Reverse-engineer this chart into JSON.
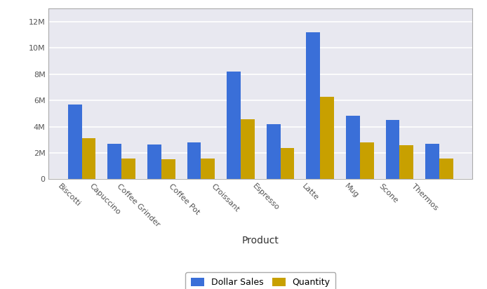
{
  "categories": [
    "Biscotti",
    "Capuccino",
    "Coffee Grinder",
    "Coffee Pot",
    "Croissant",
    "Espresso",
    "Latte",
    "Mug",
    "Scone",
    "Thermos"
  ],
  "dollar_sales": [
    5700000,
    2700000,
    2650000,
    2800000,
    8200000,
    4200000,
    11200000,
    4850000,
    4500000,
    2700000
  ],
  "quantity": [
    3100000,
    1550000,
    1500000,
    1600000,
    4550000,
    2400000,
    6300000,
    2800000,
    2600000,
    1550000
  ],
  "bar_color_blue": "#3a6fd8",
  "bar_color_yellow": "#c8a000",
  "background_color": "#e8e8f0",
  "fig_bg_color": "#ffffff",
  "xlabel": "Product",
  "ylim": [
    0,
    13000000
  ],
  "ytick_labels": [
    "0",
    "2M",
    "4M",
    "6M",
    "8M",
    "10M",
    "12M"
  ],
  "ytick_values": [
    0,
    2000000,
    4000000,
    6000000,
    8000000,
    10000000,
    12000000
  ],
  "legend_labels": [
    "Dollar Sales",
    "Quantity"
  ],
  "bar_width": 0.35,
  "xtick_rotation": -45,
  "grid_color": "#ffffff",
  "border_color": "#aaaaaa",
  "xlabel_fontsize": 10,
  "tick_fontsize": 8,
  "legend_fontsize": 9
}
